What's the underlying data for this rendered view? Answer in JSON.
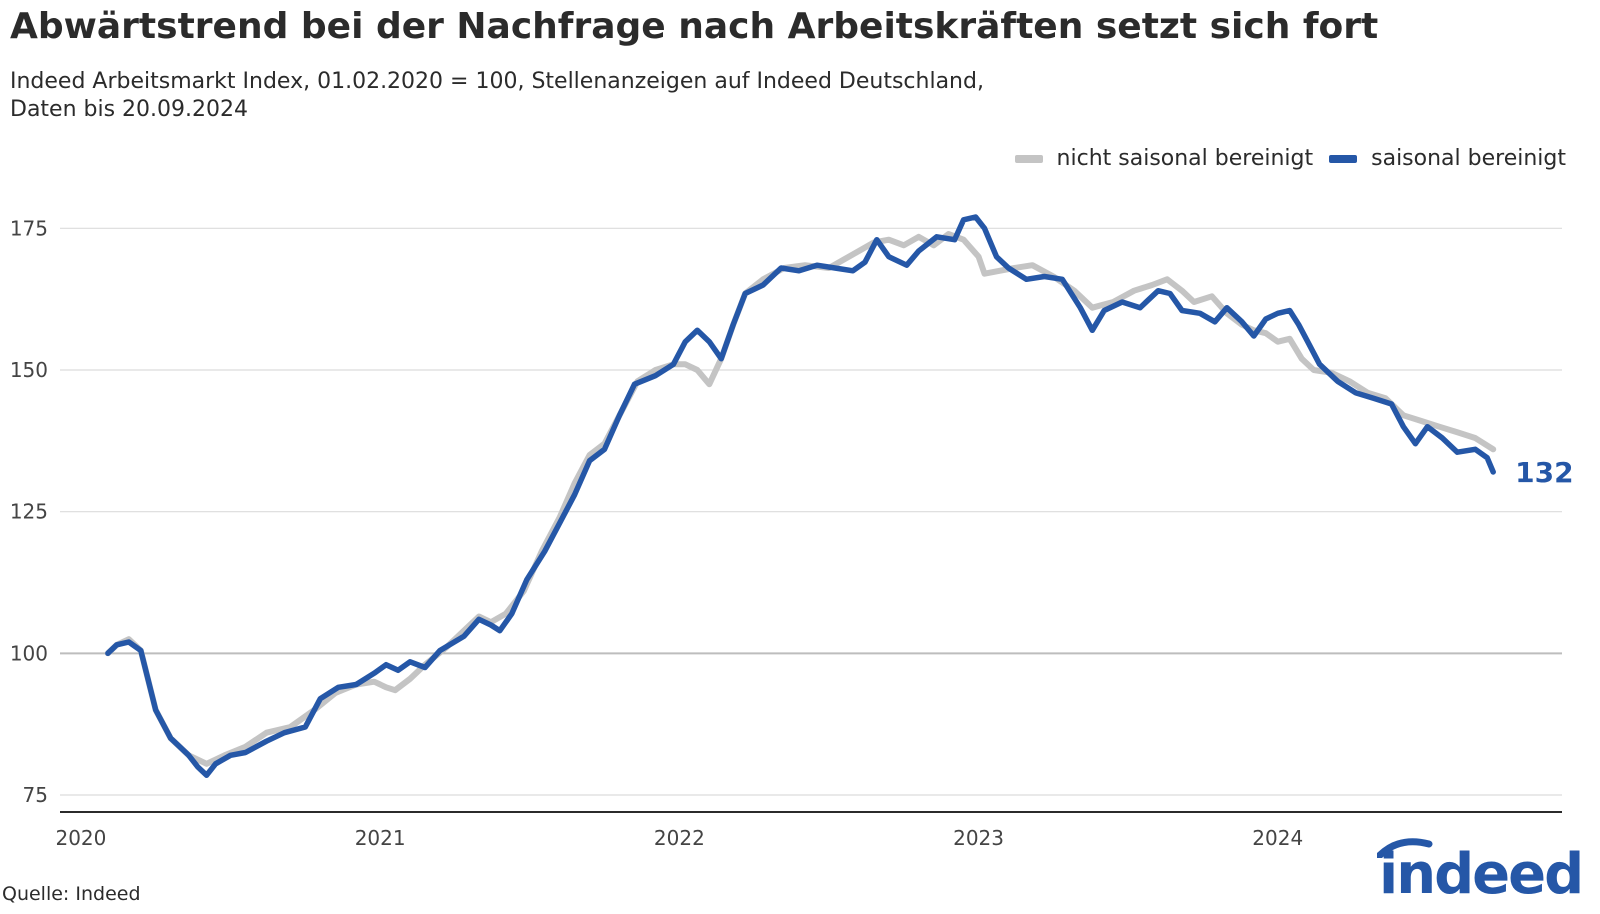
{
  "header": {
    "title": "Abwärtstrend bei der Nachfrage nach Arbeitskräften setzt sich fort",
    "subtitle_line1": "Indeed Arbeitsmarkt Index, 01.02.2020 = 100, Stellenanzeigen auf Indeed Deutschland,",
    "subtitle_line2": "Daten bis 20.09.2024"
  },
  "footer": {
    "source": "Quelle: Indeed"
  },
  "logo": {
    "text": "indeed",
    "icon": "indeed-logo-icon"
  },
  "colors": {
    "nsa": "#c4c4c4",
    "sa": "#2557a7",
    "grid": "#dcdcdc",
    "axis": "#2b2b2b",
    "baseline": "#bdbdbd"
  },
  "chart_data": {
    "type": "line",
    "title": "Abwärtstrend bei der Nachfrage nach Arbeitskräften setzt sich fort",
    "xlabel": "",
    "ylabel": "",
    "xlim": [
      2019.93,
      2024.95
    ],
    "ylim": [
      72,
      180
    ],
    "yticks": [
      75,
      100,
      125,
      150,
      175
    ],
    "xticks": [
      2020,
      2021,
      2022,
      2023,
      2024
    ],
    "grid": true,
    "legend_position": "top-right",
    "end_label": "132",
    "series": [
      {
        "name": "nicht saisonal bereinigt",
        "color": "#c4c4c4",
        "points": [
          [
            2020.09,
            100
          ],
          [
            2020.12,
            101.5
          ],
          [
            2020.16,
            102.5
          ],
          [
            2020.2,
            100.5
          ],
          [
            2020.25,
            90
          ],
          [
            2020.3,
            85
          ],
          [
            2020.36,
            82
          ],
          [
            2020.42,
            80.5
          ],
          [
            2020.48,
            82
          ],
          [
            2020.55,
            83.5
          ],
          [
            2020.62,
            86
          ],
          [
            2020.7,
            87
          ],
          [
            2020.78,
            90
          ],
          [
            2020.85,
            93
          ],
          [
            2020.92,
            94.5
          ],
          [
            2020.98,
            95
          ],
          [
            2021.02,
            94
          ],
          [
            2021.05,
            93.5
          ],
          [
            2021.1,
            95.5
          ],
          [
            2021.15,
            98
          ],
          [
            2021.22,
            101
          ],
          [
            2021.28,
            104
          ],
          [
            2021.33,
            106.5
          ],
          [
            2021.37,
            105.5
          ],
          [
            2021.42,
            107
          ],
          [
            2021.48,
            111
          ],
          [
            2021.54,
            118
          ],
          [
            2021.6,
            124
          ],
          [
            2021.65,
            130
          ],
          [
            2021.7,
            135
          ],
          [
            2021.75,
            137
          ],
          [
            2021.8,
            142
          ],
          [
            2021.86,
            148
          ],
          [
            2021.92,
            150
          ],
          [
            2021.98,
            151
          ],
          [
            2022.02,
            151
          ],
          [
            2022.06,
            150
          ],
          [
            2022.1,
            147.5
          ],
          [
            2022.14,
            152
          ],
          [
            2022.18,
            158
          ],
          [
            2022.22,
            163.5
          ],
          [
            2022.28,
            166
          ],
          [
            2022.35,
            168
          ],
          [
            2022.42,
            168.5
          ],
          [
            2022.5,
            168
          ],
          [
            2022.55,
            169.5
          ],
          [
            2022.6,
            171
          ],
          [
            2022.65,
            172.5
          ],
          [
            2022.7,
            173
          ],
          [
            2022.75,
            172
          ],
          [
            2022.8,
            173.5
          ],
          [
            2022.85,
            172
          ],
          [
            2022.9,
            174
          ],
          [
            2022.95,
            173
          ],
          [
            2023.0,
            170
          ],
          [
            2023.02,
            167
          ],
          [
            2023.07,
            167.5
          ],
          [
            2023.12,
            168
          ],
          [
            2023.18,
            168.5
          ],
          [
            2023.25,
            166.5
          ],
          [
            2023.32,
            164
          ],
          [
            2023.38,
            161
          ],
          [
            2023.45,
            162
          ],
          [
            2023.52,
            164
          ],
          [
            2023.58,
            165
          ],
          [
            2023.63,
            166
          ],
          [
            2023.68,
            164
          ],
          [
            2023.72,
            162
          ],
          [
            2023.78,
            163
          ],
          [
            2023.83,
            160
          ],
          [
            2023.88,
            158
          ],
          [
            2023.92,
            157
          ],
          [
            2023.96,
            156.5
          ],
          [
            2024.0,
            155
          ],
          [
            2024.04,
            155.5
          ],
          [
            2024.08,
            152
          ],
          [
            2024.12,
            150
          ],
          [
            2024.18,
            149.5
          ],
          [
            2024.24,
            148
          ],
          [
            2024.3,
            146
          ],
          [
            2024.36,
            145
          ],
          [
            2024.42,
            142
          ],
          [
            2024.48,
            141
          ],
          [
            2024.54,
            140
          ],
          [
            2024.6,
            139
          ],
          [
            2024.66,
            138
          ],
          [
            2024.72,
            136
          ]
        ]
      },
      {
        "name": "saisonal bereinigt",
        "color": "#2557a7",
        "points": [
          [
            2020.09,
            100
          ],
          [
            2020.12,
            101.5
          ],
          [
            2020.16,
            102
          ],
          [
            2020.2,
            100.5
          ],
          [
            2020.25,
            90
          ],
          [
            2020.3,
            85
          ],
          [
            2020.36,
            82
          ],
          [
            2020.39,
            80
          ],
          [
            2020.42,
            78.5
          ],
          [
            2020.45,
            80.5
          ],
          [
            2020.5,
            82
          ],
          [
            2020.55,
            82.5
          ],
          [
            2020.62,
            84.5
          ],
          [
            2020.68,
            86
          ],
          [
            2020.75,
            87
          ],
          [
            2020.8,
            92
          ],
          [
            2020.86,
            94
          ],
          [
            2020.92,
            94.5
          ],
          [
            2020.98,
            96.5
          ],
          [
            2021.02,
            98
          ],
          [
            2021.06,
            97
          ],
          [
            2021.1,
            98.5
          ],
          [
            2021.15,
            97.5
          ],
          [
            2021.2,
            100.5
          ],
          [
            2021.28,
            103
          ],
          [
            2021.33,
            106
          ],
          [
            2021.37,
            105
          ],
          [
            2021.4,
            104
          ],
          [
            2021.44,
            107
          ],
          [
            2021.49,
            113
          ],
          [
            2021.55,
            118
          ],
          [
            2021.6,
            123
          ],
          [
            2021.65,
            128
          ],
          [
            2021.7,
            134
          ],
          [
            2021.75,
            136
          ],
          [
            2021.8,
            142
          ],
          [
            2021.85,
            147.5
          ],
          [
            2021.92,
            149
          ],
          [
            2021.98,
            151
          ],
          [
            2022.02,
            155
          ],
          [
            2022.06,
            157
          ],
          [
            2022.1,
            155
          ],
          [
            2022.14,
            152
          ],
          [
            2022.18,
            158
          ],
          [
            2022.22,
            163.5
          ],
          [
            2022.28,
            165
          ],
          [
            2022.34,
            168
          ],
          [
            2022.4,
            167.5
          ],
          [
            2022.46,
            168.5
          ],
          [
            2022.52,
            168
          ],
          [
            2022.58,
            167.5
          ],
          [
            2022.62,
            169
          ],
          [
            2022.66,
            173
          ],
          [
            2022.7,
            170
          ],
          [
            2022.76,
            168.5
          ],
          [
            2022.8,
            171
          ],
          [
            2022.86,
            173.5
          ],
          [
            2022.92,
            173
          ],
          [
            2022.95,
            176.5
          ],
          [
            2022.99,
            177
          ],
          [
            2023.02,
            175
          ],
          [
            2023.06,
            170
          ],
          [
            2023.1,
            168
          ],
          [
            2023.16,
            166
          ],
          [
            2023.22,
            166.5
          ],
          [
            2023.28,
            166
          ],
          [
            2023.34,
            161
          ],
          [
            2023.38,
            157
          ],
          [
            2023.42,
            160.5
          ],
          [
            2023.48,
            162
          ],
          [
            2023.54,
            161
          ],
          [
            2023.6,
            164
          ],
          [
            2023.64,
            163.5
          ],
          [
            2023.68,
            160.5
          ],
          [
            2023.74,
            160
          ],
          [
            2023.79,
            158.5
          ],
          [
            2023.83,
            161
          ],
          [
            2023.88,
            158.5
          ],
          [
            2023.92,
            156
          ],
          [
            2023.96,
            159
          ],
          [
            2024.0,
            160
          ],
          [
            2024.04,
            160.5
          ],
          [
            2024.07,
            158
          ],
          [
            2024.1,
            155
          ],
          [
            2024.14,
            151
          ],
          [
            2024.2,
            148
          ],
          [
            2024.26,
            146
          ],
          [
            2024.32,
            145
          ],
          [
            2024.38,
            144
          ],
          [
            2024.42,
            140
          ],
          [
            2024.46,
            137
          ],
          [
            2024.5,
            140
          ],
          [
            2024.55,
            138
          ],
          [
            2024.6,
            135.5
          ],
          [
            2024.66,
            136
          ],
          [
            2024.7,
            134.5
          ],
          [
            2024.72,
            132
          ]
        ]
      }
    ]
  }
}
